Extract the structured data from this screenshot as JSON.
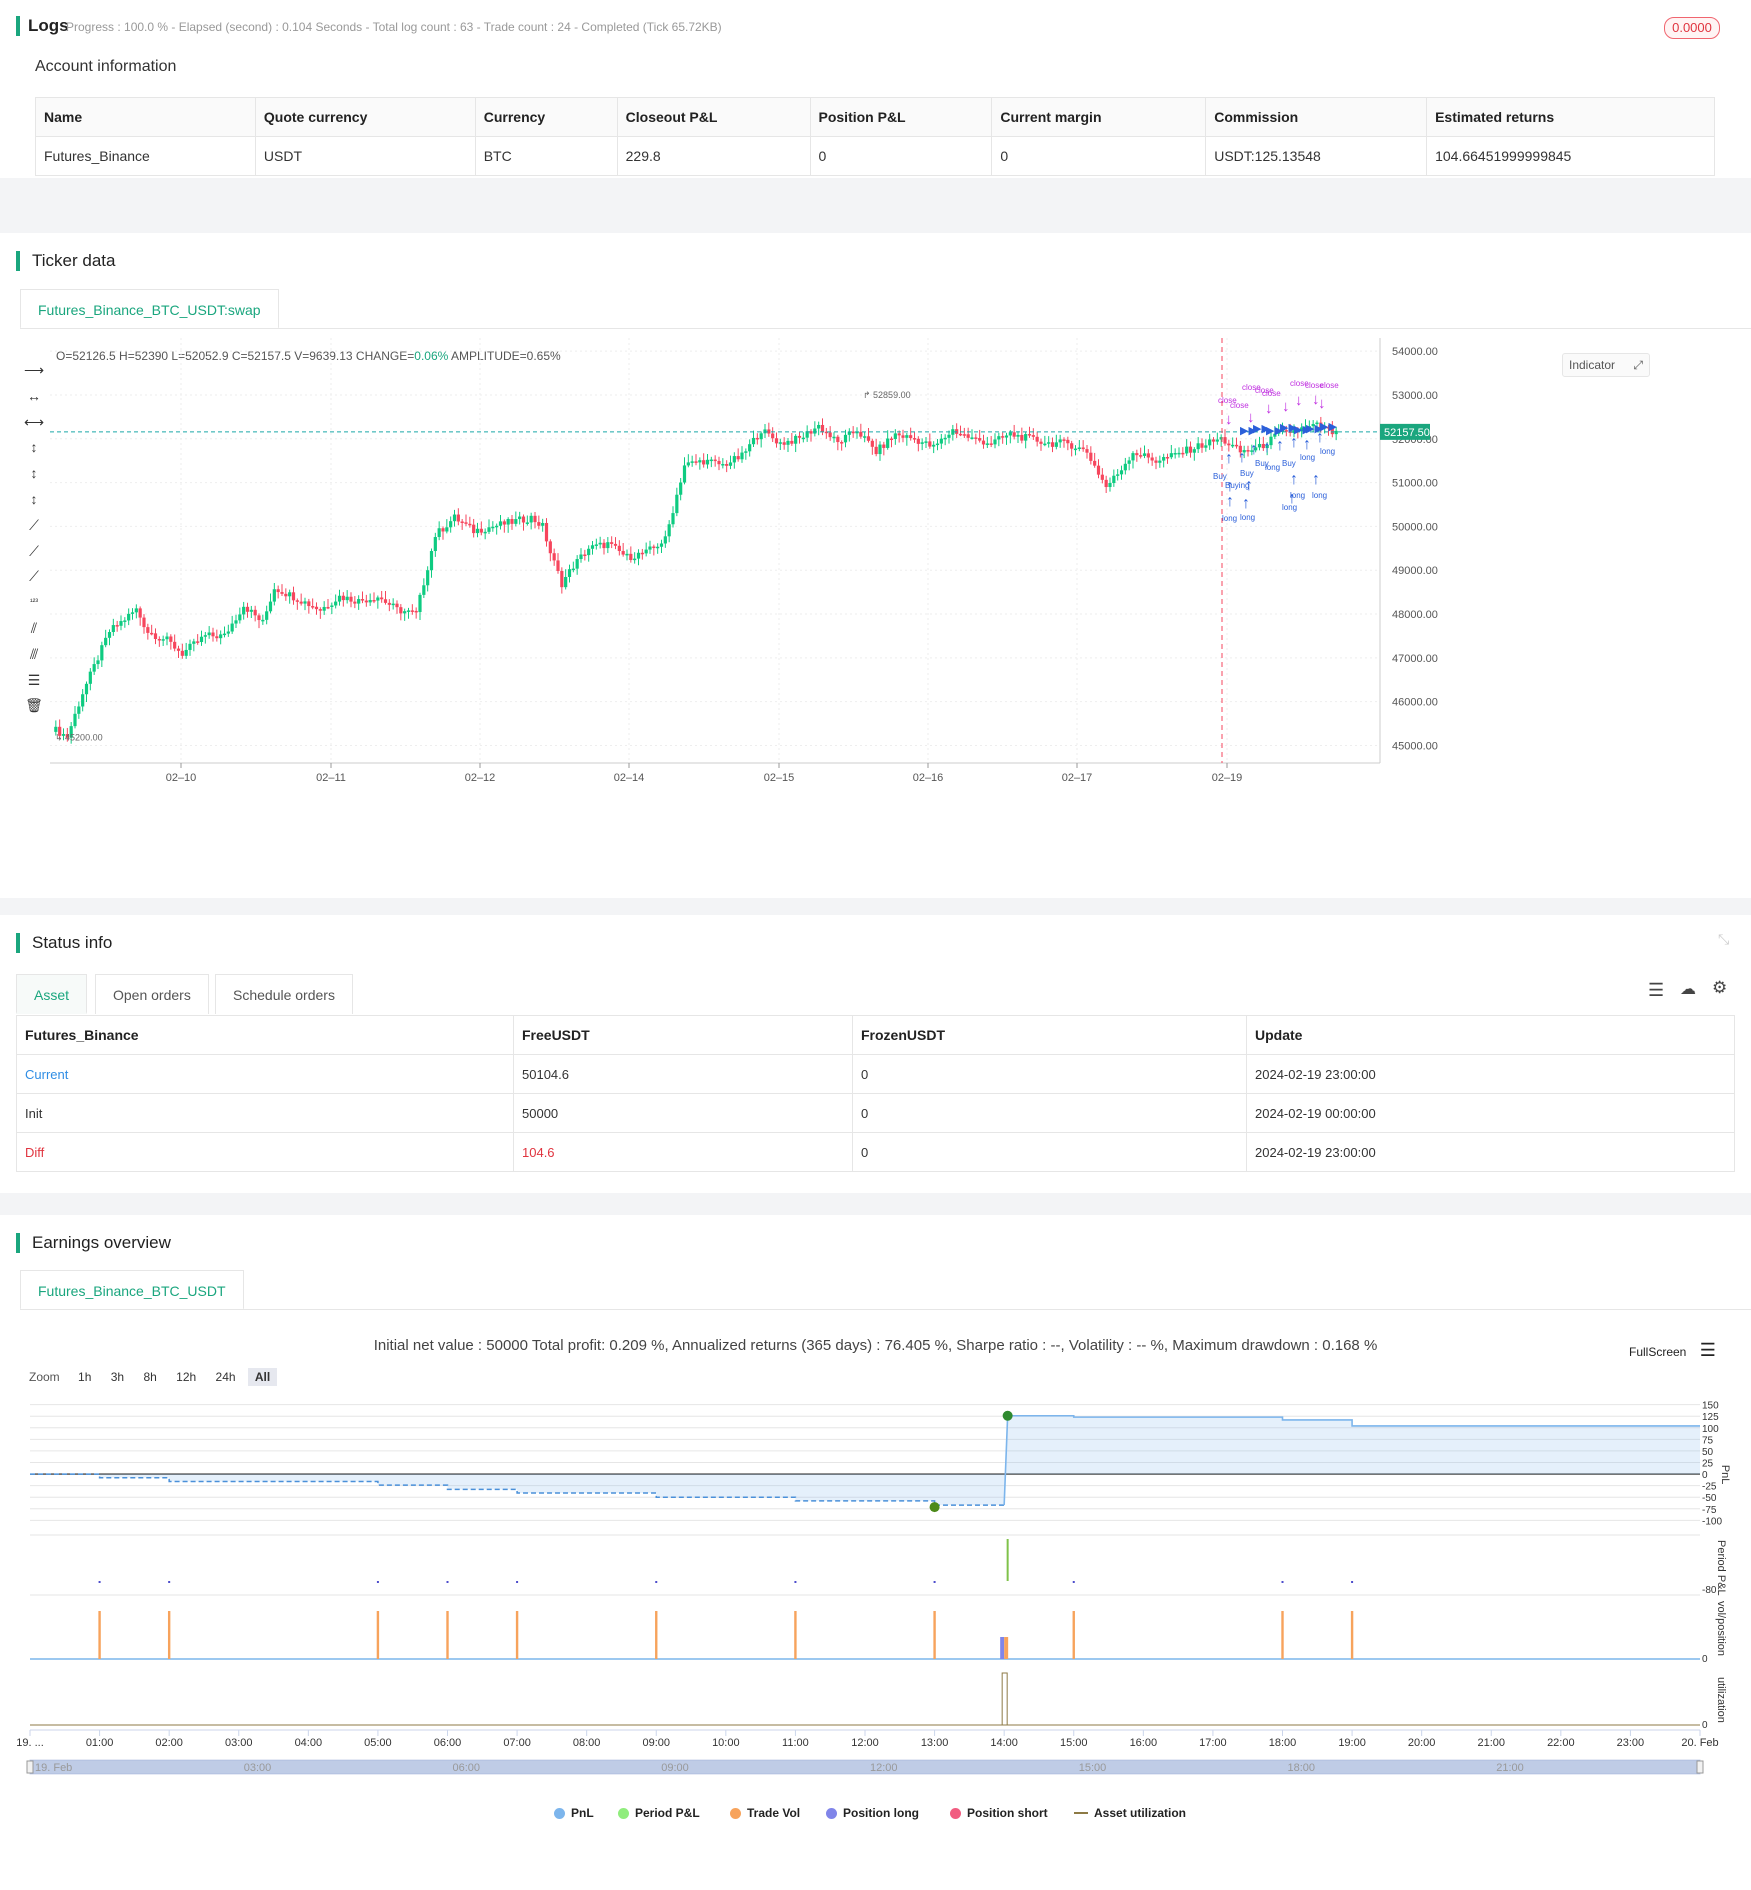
{
  "logs": {
    "title": "Logs",
    "progress": "Progress : 100.0 % - Elapsed (second) : 0.104 Seconds - Total log count : 63 - Trade count : 24 - Completed (Tick 65.72KB)",
    "badge": "0.0000"
  },
  "account": {
    "title": "Account information",
    "headers": [
      "Name",
      "Quote currency",
      "Currency",
      "Closeout P&L",
      "Position P&L",
      "Current margin",
      "Commission",
      "Estimated returns"
    ],
    "row": [
      "Futures_Binance",
      "USDT",
      "BTC",
      "229.8",
      "0",
      "0",
      "USDT:125.13548",
      "104.66451999999845"
    ]
  },
  "ticker": {
    "title": "Ticker data",
    "tab": "Futures_Binance_BTC_USDT:swap",
    "ohlc_prefix": "O=52126.5 H=52390 L=52052.9 C=52157.5 V=9639.13 CHANGE=",
    "change": "0.06%",
    "amplitude": " AMPLITUDE=0.65%",
    "indicator_btn": "Indicator",
    "last_price": "52157.50",
    "high_label": "52859.00",
    "low_label": "45200.00"
  },
  "chart_data": [
    {
      "type": "candlestick",
      "x_ticks": [
        "02–10",
        "02–11",
        "02–12",
        "02–14",
        "02–15",
        "02–16",
        "02–17",
        "02–19"
      ],
      "y_ticks": [
        54000,
        53000,
        52000,
        51000,
        50000,
        49000,
        48000,
        47000,
        46000,
        45000
      ],
      "ylim": [
        44600,
        54300
      ],
      "last_price": 52157.5,
      "high": 52859,
      "low": 45200,
      "keypoints": [
        [
          0,
          45400
        ],
        [
          4,
          45200
        ],
        [
          8,
          46200
        ],
        [
          15,
          47600
        ],
        [
          22,
          48100
        ],
        [
          25,
          47600
        ],
        [
          30,
          47400
        ],
        [
          34,
          47100
        ],
        [
          40,
          47500
        ],
        [
          45,
          47500
        ],
        [
          50,
          48200
        ],
        [
          55,
          47800
        ],
        [
          58,
          48600
        ],
        [
          63,
          48400
        ],
        [
          70,
          48100
        ],
        [
          75,
          48400
        ],
        [
          80,
          48300
        ],
        [
          85,
          48400
        ],
        [
          90,
          48100
        ],
        [
          95,
          48000
        ],
        [
          100,
          49800
        ],
        [
          105,
          50200
        ],
        [
          110,
          49900
        ],
        [
          115,
          50000
        ],
        [
          120,
          50100
        ],
        [
          125,
          50200
        ],
        [
          128,
          50000
        ],
        [
          130,
          49400
        ],
        [
          133,
          48700
        ],
        [
          136,
          49100
        ],
        [
          140,
          49500
        ],
        [
          145,
          49600
        ],
        [
          150,
          49300
        ],
        [
          155,
          49400
        ],
        [
          160,
          49700
        ],
        [
          165,
          51400
        ],
        [
          170,
          51500
        ],
        [
          175,
          51400
        ],
        [
          180,
          51600
        ],
        [
          185,
          52200
        ],
        [
          190,
          51900
        ],
        [
          195,
          52000
        ],
        [
          200,
          52300
        ],
        [
          205,
          51900
        ],
        [
          210,
          52200
        ],
        [
          215,
          51700
        ],
        [
          220,
          52100
        ],
        [
          225,
          52000
        ],
        [
          230,
          51800
        ],
        [
          235,
          52200
        ],
        [
          240,
          52000
        ],
        [
          245,
          51900
        ],
        [
          250,
          52100
        ],
        [
          255,
          52000
        ],
        [
          260,
          51900
        ],
        [
          265,
          51900
        ],
        [
          270,
          51700
        ],
        [
          275,
          50900
        ],
        [
          278,
          51200
        ],
        [
          282,
          51700
        ],
        [
          288,
          51500
        ],
        [
          292,
          51600
        ],
        [
          298,
          51800
        ],
        [
          305,
          52000
        ],
        [
          310,
          51700
        ],
        [
          315,
          51800
        ],
        [
          320,
          52100
        ],
        [
          325,
          52200
        ],
        [
          330,
          52300
        ],
        [
          335,
          52100
        ]
      ],
      "annotations": [
        "close",
        "close",
        "close",
        "Buy",
        "long",
        "long",
        "long"
      ]
    },
    {
      "type": "line",
      "title": "Initial net value : 50000 Total profit: 0.209 %, Annualized returns (365 days) : 76.405 %, Sharpe ratio : --, Volatility : -- %, Maximum drawdown : 0.168 %",
      "ylabel": "PnL",
      "y_ticks": [
        150,
        125,
        100,
        75,
        50,
        25,
        0,
        -25,
        -50,
        -75,
        -100
      ],
      "ylim": [
        -110,
        160
      ],
      "x_ticks": [
        "19. ...",
        "01:00",
        "02:00",
        "03:00",
        "04:00",
        "05:00",
        "06:00",
        "07:00",
        "08:00",
        "09:00",
        "10:00",
        "11:00",
        "12:00",
        "13:00",
        "14:00",
        "15:00",
        "16:00",
        "17:00",
        "18:00",
        "19:00",
        "20:00",
        "21:00",
        "22:00",
        "23:00",
        "20. Feb"
      ],
      "series": [
        {
          "name": "PnL",
          "x": [
            0,
            1,
            1,
            2,
            2,
            5,
            5,
            6,
            6,
            7,
            7,
            9,
            9,
            11,
            11,
            13,
            13,
            14,
            14.05,
            15,
            15,
            18,
            18,
            19,
            19,
            24
          ],
          "values": [
            0,
            0,
            -8,
            -8,
            -16,
            -16,
            -24,
            -24,
            -33,
            -33,
            -41,
            -41,
            -50,
            -50,
            -58,
            -58,
            -67,
            -67,
            126,
            126,
            123,
            123,
            117,
            117,
            104,
            104
          ]
        }
      ]
    },
    {
      "type": "bar",
      "ylabel": "Period P&L",
      "y_ticks": [
        -80
      ]
    },
    {
      "type": "bar",
      "ylabel": "vol/position",
      "y_ticks": [
        0
      ]
    },
    {
      "type": "bar",
      "ylabel": "utilization",
      "y_ticks": [
        0
      ]
    }
  ],
  "status": {
    "title": "Status info",
    "tabs": [
      "Asset",
      "Open orders",
      "Schedule orders"
    ],
    "headers": [
      "Futures_Binance",
      "FreeUSDT",
      "FrozenUSDT",
      "Update"
    ],
    "rows": [
      {
        "name": "Current",
        "free": "50104.6",
        "frozen": "0",
        "update": "2024-02-19 23:00:00"
      },
      {
        "name": "Init",
        "free": "50000",
        "frozen": "0",
        "update": "2024-02-19 00:00:00"
      },
      {
        "name": "Diff",
        "free": "104.6",
        "frozen": "0",
        "update": "2024-02-19 23:00:00"
      }
    ]
  },
  "earnings": {
    "title": "Earnings overview",
    "tab": "Futures_Binance_BTC_USDT",
    "fullscreen": "FullScreen",
    "zoom_label": "Zoom",
    "zoom": [
      "1h",
      "3h",
      "8h",
      "12h",
      "24h",
      "All"
    ],
    "legend": [
      "PnL",
      "Period P&L",
      "Trade Vol",
      "Position long",
      "Position short",
      "Asset utilization"
    ],
    "legend_colors": [
      "#7cb5ec",
      "#90ed7d",
      "#f7a35c",
      "#8085e9",
      "#f15c80",
      "#8d7a45"
    ],
    "navigator": [
      "19. Feb",
      "03:00",
      "06:00",
      "09:00",
      "12:00",
      "15:00",
      "18:00",
      "21:00"
    ]
  }
}
